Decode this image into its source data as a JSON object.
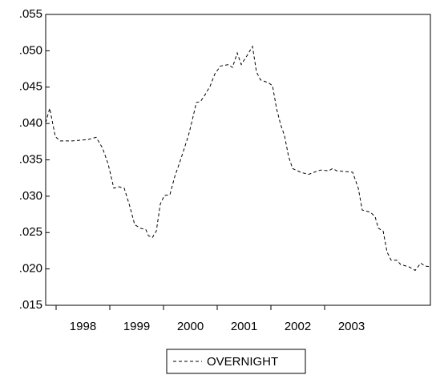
{
  "chart_data": {
    "type": "line",
    "x": [
      1997.806,
      1997.881,
      1997.985,
      1998.075,
      1998.299,
      1998.597,
      1998.746,
      1998.866,
      1998.97,
      1999.075,
      1999.164,
      1999.269,
      1999.373,
      1999.463,
      1999.567,
      1999.672,
      1999.716,
      1999.791,
      1999.866,
      1999.94,
      2000.015,
      2000.119,
      2000.209,
      2000.313,
      2000.463,
      2000.537,
      2000.612,
      2000.687,
      2000.761,
      2000.866,
      2000.955,
      2001.06,
      2001.209,
      2001.284,
      2001.373,
      2001.448,
      2001.552,
      2001.657,
      2001.731,
      2001.806,
      2001.955,
      2002.03,
      2002.104,
      2002.179,
      2002.254,
      2002.328,
      2002.403,
      2002.552,
      2002.701,
      2002.806,
      2002.925,
      2003.075,
      2003.149,
      2003.224,
      2003.522,
      2003.627,
      2003.701,
      2003.851,
      2003.94,
      2004.0,
      2004.09,
      2004.164,
      2004.239,
      2004.343,
      2004.418,
      2004.567,
      2004.687,
      2004.791,
      2004.866,
      2004.97
    ],
    "series": [
      {
        "name": "OVERNIGHT",
        "color": "#000000",
        "dash": true,
        "values": [
          0.0401,
          0.0421,
          0.0382,
          0.0376,
          0.0376,
          0.0378,
          0.0381,
          0.0366,
          0.0344,
          0.0311,
          0.0313,
          0.0311,
          0.0286,
          0.0261,
          0.0256,
          0.0254,
          0.0246,
          0.0243,
          0.0252,
          0.0289,
          0.0301,
          0.0302,
          0.0327,
          0.0349,
          0.0383,
          0.0405,
          0.0429,
          0.043,
          0.0438,
          0.0451,
          0.0468,
          0.0479,
          0.0481,
          0.0477,
          0.0497,
          0.0481,
          0.0493,
          0.0506,
          0.0471,
          0.046,
          0.0456,
          0.0452,
          0.0421,
          0.0399,
          0.0383,
          0.0355,
          0.0338,
          0.0333,
          0.033,
          0.0333,
          0.0336,
          0.0335,
          0.0338,
          0.0335,
          0.0333,
          0.0311,
          0.0281,
          0.0278,
          0.0272,
          0.0256,
          0.0252,
          0.0223,
          0.0212,
          0.0212,
          0.0206,
          0.0203,
          0.0198,
          0.0208,
          0.0204,
          0.0203
        ]
      }
    ],
    "xlim": [
      1997.806,
      2004.97
    ],
    "xticks": [
      1998,
      1999,
      2000,
      2001,
      2002,
      2003
    ],
    "ylim": [
      0.015,
      0.055
    ],
    "yticks": [
      {
        "value": 0.015,
        "label": ".015"
      },
      {
        "value": 0.02,
        "label": ".020"
      },
      {
        "value": 0.025,
        "label": ".025"
      },
      {
        "value": 0.03,
        "label": ".030"
      },
      {
        "value": 0.035,
        "label": ".035"
      },
      {
        "value": 0.04,
        "label": ".040"
      },
      {
        "value": 0.045,
        "label": ".045"
      },
      {
        "value": 0.05,
        "label": ".050"
      },
      {
        "value": 0.055,
        "label": ".055"
      }
    ],
    "grid": false,
    "legend": "bottom"
  }
}
